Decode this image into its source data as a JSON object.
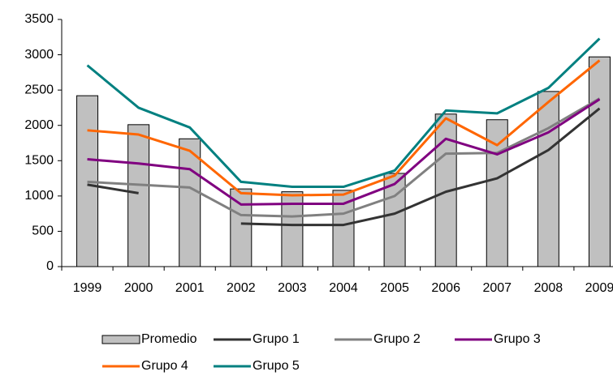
{
  "chart_data": {
    "type": "bar-line",
    "categories": [
      "1999",
      "2000",
      "2001",
      "2002",
      "2003",
      "2004",
      "2005",
      "2006",
      "2007",
      "2008",
      "2009"
    ],
    "series": [
      {
        "name": "Promedio",
        "type": "bar",
        "color": "#c0c0c0",
        "values": [
          2420,
          2010,
          1810,
          1100,
          1060,
          1080,
          1320,
          2160,
          2080,
          2480,
          2970
        ]
      },
      {
        "name": "Grupo 1",
        "type": "line",
        "color": "#333333",
        "values": [
          1160,
          1040,
          null,
          610,
          590,
          590,
          750,
          1060,
          1250,
          1650,
          2240
        ]
      },
      {
        "name": "Grupo 2",
        "type": "line",
        "color": "#808080",
        "values": [
          1200,
          1160,
          1120,
          730,
          710,
          750,
          1000,
          1600,
          1610,
          1960,
          2380
        ]
      },
      {
        "name": "Grupo 3",
        "type": "line",
        "color": "#800080",
        "values": [
          1520,
          1460,
          1380,
          880,
          890,
          890,
          1170,
          1810,
          1590,
          1900,
          2370
        ]
      },
      {
        "name": "Grupo 4",
        "type": "line",
        "color": "#ff6600",
        "values": [
          1930,
          1870,
          1640,
          1040,
          1010,
          1020,
          1290,
          2100,
          1720,
          2330,
          2920
        ]
      },
      {
        "name": "Grupo 5",
        "type": "line",
        "color": "#008080",
        "values": [
          2850,
          2250,
          1970,
          1200,
          1130,
          1130,
          1360,
          2210,
          2170,
          2530,
          3230
        ]
      }
    ],
    "ylim": [
      0,
      3500
    ],
    "yticks": [
      0,
      500,
      1000,
      1500,
      2000,
      2500,
      3000,
      3500
    ],
    "grid": false,
    "legend": "bottom"
  }
}
